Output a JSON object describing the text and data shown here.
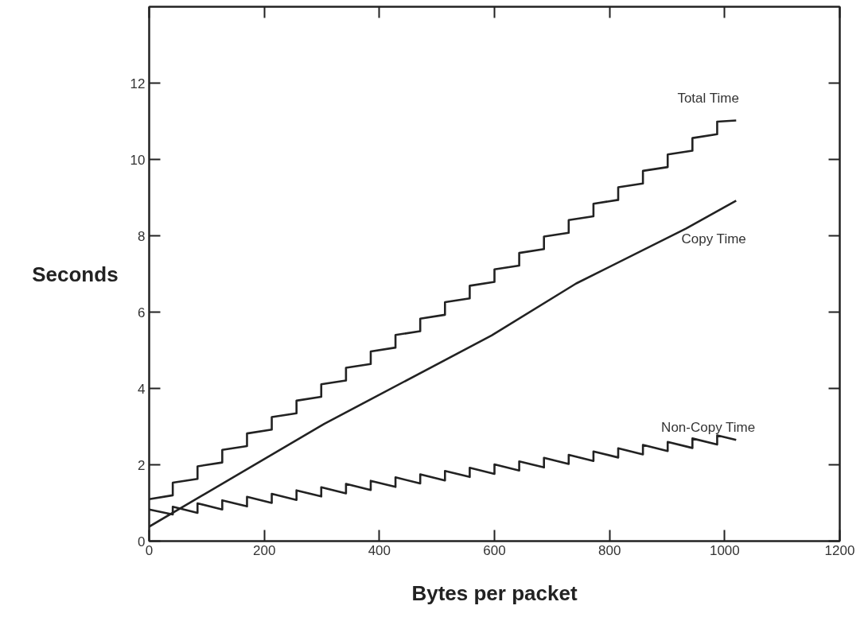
{
  "chart_data": {
    "type": "line",
    "xlabel": "Bytes per packet",
    "ylabel": "Seconds",
    "xlim": [
      0,
      1200
    ],
    "ylim": [
      0,
      14
    ],
    "xticks": [
      0,
      200,
      400,
      600,
      800,
      1000,
      1200
    ],
    "yticks": [
      0,
      2,
      4,
      6,
      8,
      10,
      12
    ],
    "grid": false,
    "legend": false,
    "line_style": "solid",
    "marker": "none",
    "series": [
      {
        "name": "Total Time",
        "color": "#222222",
        "x": [
          0,
          41,
          41,
          84,
          84,
          127,
          127,
          170,
          170,
          213,
          213,
          256,
          256,
          299,
          299,
          342,
          342,
          385,
          385,
          428,
          428,
          471,
          471,
          514,
          514,
          557,
          557,
          600,
          600,
          643,
          643,
          686,
          686,
          729,
          729,
          772,
          772,
          815,
          815,
          858,
          858,
          901,
          901,
          944,
          944,
          987,
          987,
          1020
        ],
        "values": [
          1.1,
          1.2,
          1.53,
          1.63,
          1.96,
          2.06,
          2.39,
          2.49,
          2.82,
          2.92,
          3.25,
          3.35,
          3.68,
          3.78,
          4.11,
          4.21,
          4.54,
          4.64,
          4.97,
          5.07,
          5.4,
          5.5,
          5.83,
          5.93,
          6.26,
          6.36,
          6.69,
          6.79,
          7.12,
          7.22,
          7.55,
          7.65,
          7.98,
          8.08,
          8.41,
          8.51,
          8.84,
          8.94,
          9.27,
          9.37,
          9.7,
          9.8,
          10.13,
          10.23,
          10.56,
          10.66,
          10.99,
          11.02
        ]
      },
      {
        "name": "Copy Time",
        "color": "#222222",
        "x": [
          0,
          304,
          595,
          742,
          933,
          1020
        ],
        "values": [
          0.38,
          3.07,
          5.39,
          6.75,
          8.19,
          8.92
        ]
      },
      {
        "name": "Non-Copy Time",
        "color": "#222222",
        "x": [
          0,
          41,
          41,
          84,
          84,
          127,
          127,
          170,
          170,
          213,
          213,
          256,
          256,
          299,
          299,
          342,
          342,
          385,
          385,
          428,
          428,
          471,
          471,
          514,
          514,
          557,
          557,
          600,
          600,
          643,
          643,
          686,
          686,
          729,
          729,
          772,
          772,
          815,
          815,
          858,
          858,
          901,
          901,
          944,
          944,
          987,
          987,
          1020
        ],
        "values": [
          0.83,
          0.7,
          0.9,
          0.74,
          0.99,
          0.83,
          1.07,
          0.91,
          1.16,
          1.0,
          1.24,
          1.08,
          1.33,
          1.17,
          1.41,
          1.25,
          1.5,
          1.34,
          1.58,
          1.42,
          1.67,
          1.51,
          1.75,
          1.59,
          1.84,
          1.68,
          1.92,
          1.76,
          2.01,
          1.85,
          2.09,
          1.93,
          2.18,
          2.02,
          2.26,
          2.1,
          2.35,
          2.19,
          2.43,
          2.27,
          2.52,
          2.36,
          2.6,
          2.44,
          2.69,
          2.53,
          2.77,
          2.65
        ]
      }
    ]
  }
}
